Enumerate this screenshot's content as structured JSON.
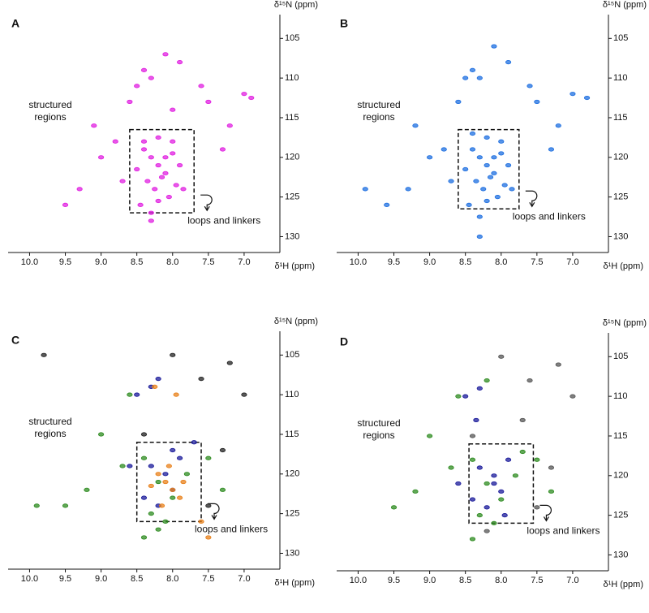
{
  "chart_data": [
    {
      "type": "scatter",
      "panel_label": "A",
      "x_label": "δ¹H (ppm)",
      "y_label": "δ¹⁵N (ppm)",
      "structured_label": [
        "structured",
        "regions"
      ],
      "box_label": "loops and linkers",
      "box": {
        "x": [
          8.6,
          7.7
        ],
        "y": [
          116.5,
          127
        ]
      },
      "xlim": [
        10.3,
        6.5
      ],
      "ylim": [
        132,
        102
      ],
      "xticks": [
        {
          "value": 10,
          "label": "10.0"
        },
        9.5,
        {
          "value": 9,
          "label": "9.0"
        },
        8.5,
        {
          "value": 8,
          "label": "8.0"
        },
        7.5,
        {
          "value": 7,
          "label": "7.0"
        }
      ],
      "yticks": [
        105,
        110,
        115,
        120,
        125,
        130
      ],
      "series": [
        {
          "color": "#e020e0",
          "x": [
            8.4,
            8.3,
            8.2,
            8.1,
            8.0,
            7.9,
            8.35,
            8.25,
            8.15,
            8.05,
            7.95,
            8.45,
            8.3,
            8.2,
            8.1,
            8.5,
            8.0,
            7.85,
            8.4,
            8.2,
            8.4,
            8.3,
            8.1,
            7.9,
            7.6,
            7.5,
            7.0,
            6.9,
            9.0,
            9.1,
            8.8,
            8.7,
            9.3,
            9.5,
            7.3,
            7.2,
            8.6,
            8.5,
            8.3,
            8.0
          ],
          "y": [
            119,
            120,
            121,
            122,
            119.5,
            121,
            123,
            124,
            122.5,
            125,
            123.5,
            126,
            127,
            125.5,
            120,
            121.5,
            118,
            124,
            118,
            117.5,
            109,
            110,
            107,
            108,
            111,
            113,
            112,
            112.5,
            120,
            116,
            118,
            123,
            124,
            126,
            119,
            116,
            113,
            111,
            128,
            114
          ]
        }
      ]
    },
    {
      "type": "scatter",
      "panel_label": "B",
      "x_label": "δ¹H (ppm)",
      "y_label": "δ¹⁵N (ppm)",
      "structured_label": [
        "structured",
        "regions"
      ],
      "box_label": "loops and linkers",
      "box": {
        "x": [
          8.6,
          7.75
        ],
        "y": [
          116.5,
          126.5
        ]
      },
      "xlim": [
        10.3,
        6.5
      ],
      "ylim": [
        132,
        102
      ],
      "xticks": [
        {
          "value": 10,
          "label": "10.0"
        },
        9.5,
        {
          "value": 9,
          "label": "9.0"
        },
        8.5,
        {
          "value": 8,
          "label": "8.0"
        },
        7.5,
        {
          "value": 7,
          "label": "7.0"
        }
      ],
      "yticks": [
        105,
        110,
        115,
        120,
        125,
        130
      ],
      "series": [
        {
          "color": "#1e6fe0",
          "x": [
            8.4,
            8.3,
            8.2,
            8.1,
            8.0,
            7.9,
            8.35,
            8.25,
            8.15,
            8.05,
            7.95,
            8.45,
            8.3,
            8.2,
            8.1,
            8.5,
            8.0,
            7.85,
            8.4,
            8.2,
            8.4,
            8.3,
            8.1,
            7.9,
            7.6,
            7.5,
            7.0,
            6.8,
            9.0,
            9.2,
            8.8,
            8.7,
            9.3,
            9.6,
            7.3,
            7.2,
            8.6,
            8.5,
            8.3,
            9.9
          ],
          "y": [
            119,
            120,
            121,
            122,
            119.5,
            121,
            123,
            124,
            122.5,
            125,
            123.5,
            126,
            127.5,
            125.5,
            120,
            121.5,
            118,
            124,
            117,
            117.5,
            109,
            110,
            106,
            108,
            111,
            113,
            112,
            112.5,
            120,
            116,
            119,
            123,
            124,
            126,
            119,
            116,
            113,
            110,
            130,
            124
          ]
        }
      ]
    },
    {
      "type": "scatter",
      "panel_label": "C",
      "x_label": "δ¹H (ppm)",
      "y_label": "δ¹⁵N (ppm)",
      "structured_label": [
        "structured",
        "regions"
      ],
      "box_label": "loops and linkers",
      "box": {
        "x": [
          8.5,
          7.6
        ],
        "y": [
          116,
          126
        ]
      },
      "xlim": [
        10.3,
        6.5
      ],
      "ylim": [
        132,
        102
      ],
      "xticks": [
        {
          "value": 10,
          "label": "10.0"
        },
        9.5,
        {
          "value": 9,
          "label": "9.0"
        },
        8.5,
        {
          "value": 8,
          "label": "8.0"
        },
        7.5,
        {
          "value": 7,
          "label": "7.0"
        }
      ],
      "yticks": [
        105,
        110,
        115,
        120,
        125,
        130
      ],
      "series": [
        {
          "color": "#2e8b20",
          "x": [
            8.4,
            8.2,
            8.0,
            7.8,
            8.3,
            8.1,
            9.0,
            9.2,
            8.7,
            7.5,
            7.3,
            8.6,
            9.5,
            9.9,
            8.4,
            8.2
          ],
          "y": [
            118,
            121,
            123,
            120,
            125,
            126,
            115,
            122,
            119,
            118,
            122,
            110,
            124,
            124,
            128,
            127
          ]
        },
        {
          "color": "#1a1a9a",
          "x": [
            8.3,
            8.1,
            8.0,
            8.4,
            8.2,
            7.9,
            8.5,
            8.3,
            7.7,
            8.2,
            8.6,
            8.0
          ],
          "y": [
            119,
            120,
            122,
            123,
            124,
            118,
            110,
            109,
            116,
            108,
            119,
            117
          ]
        },
        {
          "color": "#e8801a",
          "x": [
            8.2,
            8.1,
            8.0,
            7.9,
            8.3,
            8.15,
            7.85,
            8.05,
            7.6,
            7.5,
            8.25,
            7.95
          ],
          "y": [
            120,
            121,
            122,
            123,
            121.5,
            124,
            121,
            119,
            126,
            128,
            109,
            110
          ]
        },
        {
          "color": "#222222",
          "x": [
            8.0,
            7.6,
            7.2,
            7.0,
            8.4,
            7.5,
            9.8,
            7.3
          ],
          "y": [
            105,
            108,
            106,
            110,
            115,
            124,
            105,
            117
          ]
        }
      ]
    },
    {
      "type": "scatter",
      "panel_label": "D",
      "x_label": "δ¹H (ppm)",
      "y_label": "δ¹⁵N (ppm)",
      "structured_label": [
        "structured",
        "regions"
      ],
      "box_label": "loops and linkers",
      "box": {
        "x": [
          8.45,
          7.55
        ],
        "y": [
          116,
          126
        ]
      },
      "xlim": [
        10.3,
        6.5
      ],
      "ylim": [
        132,
        102
      ],
      "xticks": [
        {
          "value": 10,
          "label": "10.0"
        },
        9.5,
        {
          "value": 9,
          "label": "9.0"
        },
        8.5,
        {
          "value": 8,
          "label": "8.0"
        },
        7.5,
        {
          "value": 7,
          "label": "7.0"
        }
      ],
      "yticks": [
        105,
        110,
        115,
        120,
        125,
        130
      ],
      "series": [
        {
          "color": "#2e8b20",
          "x": [
            8.4,
            8.2,
            8.0,
            7.8,
            8.3,
            8.1,
            9.0,
            9.2,
            8.7,
            7.5,
            7.3,
            8.6,
            9.5,
            8.4,
            7.7,
            8.2
          ],
          "y": [
            118,
            121,
            123,
            120,
            125,
            126,
            115,
            122,
            119,
            118,
            122,
            110,
            124,
            128,
            117,
            108
          ]
        },
        {
          "color": "#1a1a9a",
          "x": [
            8.3,
            8.1,
            8.0,
            8.4,
            8.2,
            7.9,
            8.5,
            8.3,
            8.1,
            8.35,
            8.6,
            7.95
          ],
          "y": [
            119,
            120,
            122,
            123,
            124,
            118,
            110,
            109,
            121,
            113,
            121,
            125
          ]
        },
        {
          "color": "#555555",
          "x": [
            8.0,
            7.6,
            7.2,
            7.0,
            8.4,
            7.5,
            7.3,
            7.7,
            8.2
          ],
          "y": [
            105,
            108,
            106,
            110,
            115,
            124,
            119,
            113,
            127
          ]
        }
      ]
    }
  ]
}
